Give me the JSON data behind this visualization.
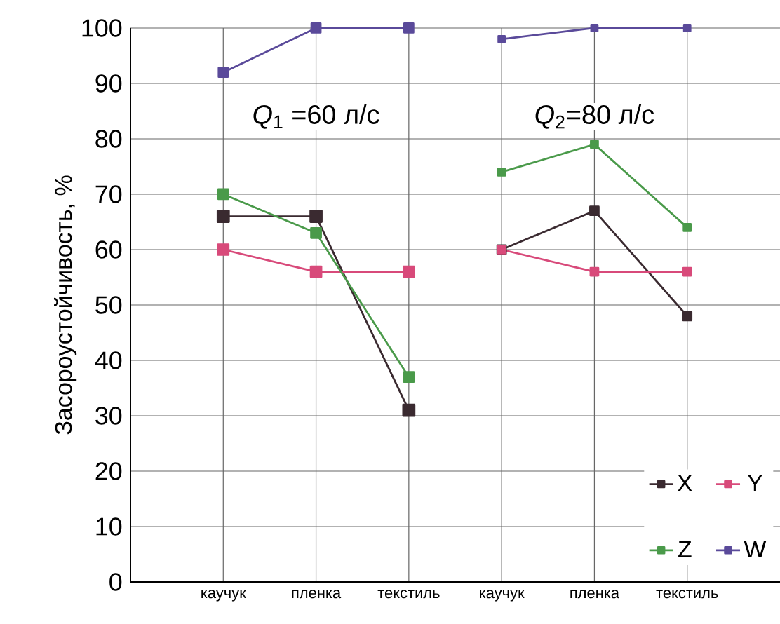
{
  "chart_data": {
    "type": "line",
    "ylabel": "Засороустойчивость, %",
    "categories": [
      "каучук",
      "пленка",
      "текстиль",
      "каучук",
      "пленка",
      "текстиль"
    ],
    "series": [
      {
        "name": "X",
        "color": "#3a2a30",
        "values": [
          66,
          66,
          31,
          null,
          null,
          null
        ]
      },
      {
        "name": "Y",
        "color": "#d84a7a",
        "values": [
          60,
          56,
          56,
          null,
          null,
          null
        ]
      },
      {
        "name": "Z",
        "color": "#4a9a4a",
        "values": [
          70,
          63,
          37,
          null,
          null,
          null
        ]
      },
      {
        "name": "W",
        "color": "#5a4a9a",
        "values": [
          92,
          100,
          100,
          null,
          null,
          null
        ]
      },
      {
        "color": "#3a2a30",
        "values": [
          null,
          null,
          null,
          60,
          67,
          48
        ]
      },
      {
        "color": "#d84a7a",
        "values": [
          null,
          null,
          null,
          60,
          56,
          56
        ]
      },
      {
        "color": "#4a9a4a",
        "values": [
          null,
          null,
          null,
          74,
          79,
          64
        ]
      },
      {
        "color": "#5a4a9a",
        "values": [
          null,
          null,
          null,
          98,
          100,
          100
        ]
      }
    ],
    "ylim": [
      0,
      100
    ],
    "yticks": [
      0,
      10,
      20,
      30,
      40,
      50,
      60,
      70,
      80,
      90,
      100
    ],
    "grid": true,
    "legend": "bottom right",
    "marker": "square",
    "line_style": "solid",
    "annotations": [
      "*Q*$_{1}$ =60 л/с",
      "*Q*$_{2}$=80 л/с"
    ]
  }
}
